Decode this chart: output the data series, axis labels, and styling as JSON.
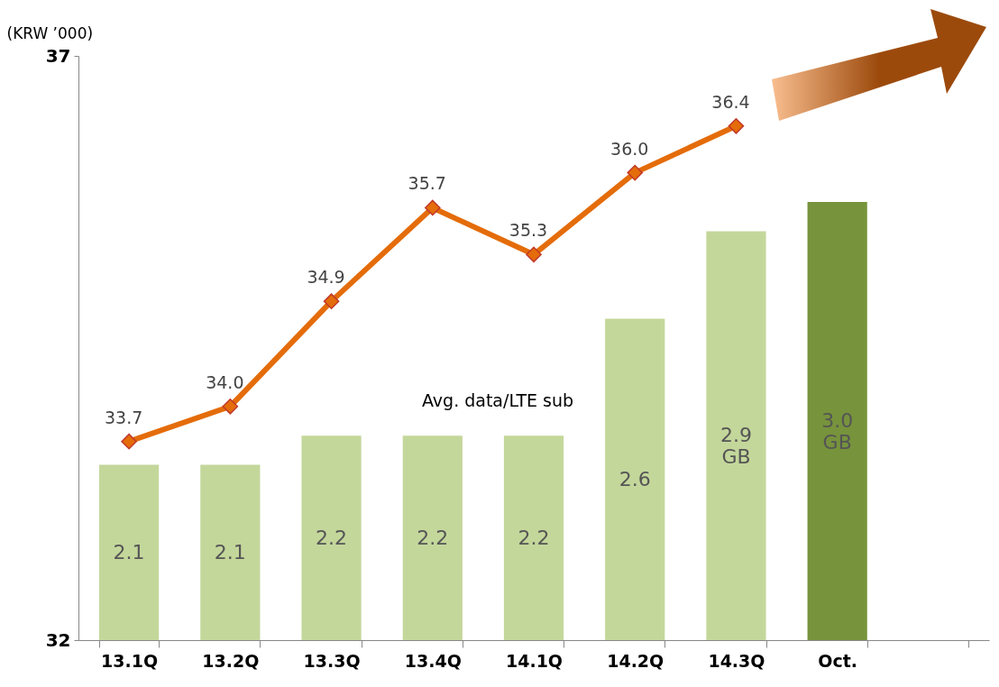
{
  "chart_data": {
    "type": "bar",
    "ylabel": "(KRW ’000)",
    "categories": [
      "13.1Q",
      "13.2Q",
      "13.3Q",
      "13.4Q",
      "14.1Q",
      "14.2Q",
      "14.3Q",
      "Oct.",
      null
    ],
    "series": [
      {
        "axis": "y2",
        "colors": [
          "#c4d79b",
          "#c4d79b",
          "#c4d79b",
          "#c4d79b",
          "#c4d79b",
          "#c4d79b",
          "#c4d79b",
          "#77933c",
          null
        ],
        "values": [
          2.1,
          2.1,
          2.2,
          2.2,
          2.2,
          2.6,
          2.9,
          3.0,
          null
        ],
        "value_labels": [
          "2.1",
          "2.1",
          "2.2",
          "2.2",
          "2.2",
          "2.6",
          "2.9 GB",
          "3.0 GB",
          null
        ]
      },
      {
        "type": "line",
        "color": "#e46c0a",
        "values": [
          33.7,
          34.0,
          34.9,
          35.7,
          35.3,
          36.0,
          36.4,
          null,
          null
        ],
        "value_labels": [
          "33.7",
          "34.0",
          "34.9",
          "35.7",
          "35.3",
          "36.0",
          "36.4",
          null,
          null
        ]
      }
    ],
    "data_labels": true,
    "marker": "diamond",
    "ylim": [
      32,
      37
    ],
    "yticks": [
      32,
      37
    ],
    "y2lim": [
      1.5,
      3.5
    ],
    "annotations": [
      "Avg. data/LTE sub"
    ]
  }
}
